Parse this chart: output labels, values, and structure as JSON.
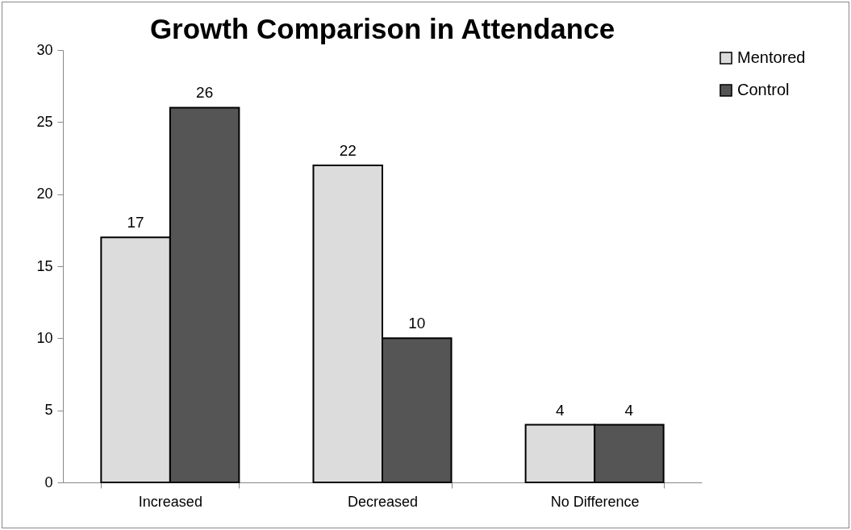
{
  "chart_data": {
    "type": "bar",
    "title": "Growth Comparison in Attendance",
    "categories": [
      "Increased",
      "Decreased",
      "No Difference"
    ],
    "series": [
      {
        "name": "Mentored",
        "color": "#dcdcdc",
        "values": [
          17,
          22,
          4
        ]
      },
      {
        "name": "Control",
        "color": "#555555",
        "values": [
          26,
          10,
          4
        ]
      }
    ],
    "ylim": [
      0,
      30
    ],
    "yticks": [
      0,
      5,
      10,
      15,
      20,
      25,
      30
    ],
    "data_labels": true,
    "legend": "right"
  }
}
